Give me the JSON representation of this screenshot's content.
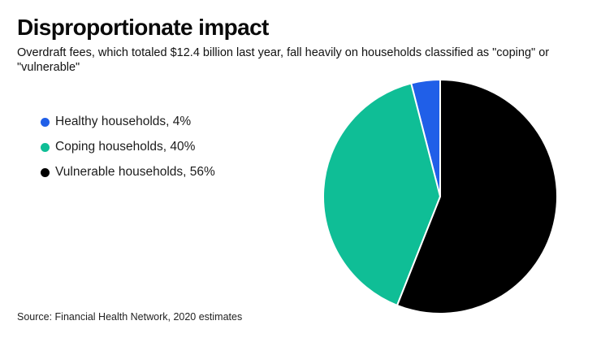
{
  "header": {
    "title": "Disproportionate impact",
    "subtitle": "Overdraft fees, which totaled $12.4 billion last year, fall heavily on households classified as \"coping\" or \"vulnerable\""
  },
  "source": "Source: Financial Health Network, 2020 estimates",
  "colors": {
    "healthy_blue": "#205FE8",
    "coping_teal": "#0FBE96",
    "vulnerable_black": "#000000",
    "slice_divider": "#FFFFFF",
    "background": "#FFFFFF"
  },
  "chart_data": {
    "type": "pie",
    "title": "Disproportionate impact",
    "subtitle": "Overdraft fees, which totaled $12.4 billion last year, fall heavily on households classified as \"coping\" or \"vulnerable\"",
    "unit": "%",
    "slices": [
      {
        "label": "Healthy households",
        "value": 4,
        "color": "#205FE8",
        "legend_label": "Healthy households, 4%"
      },
      {
        "label": "Coping households",
        "value": 40,
        "color": "#0FBE96",
        "legend_label": "Coping households, 40%"
      },
      {
        "label": "Vulnerable households",
        "value": 56,
        "color": "#000000",
        "legend_label": "Vulnerable households, 56%"
      }
    ],
    "layout": {
      "start_angle_deg_from_12_oclock": 0,
      "draw_direction": "counterclockwise",
      "clockwise_order_from_top": [
        "Vulnerable households",
        "Coping households",
        "Healthy households"
      ],
      "legend_position": "left",
      "slice_gap_color": "#FFFFFF"
    },
    "source": "Source: Financial Health Network, 2020 estimates"
  }
}
